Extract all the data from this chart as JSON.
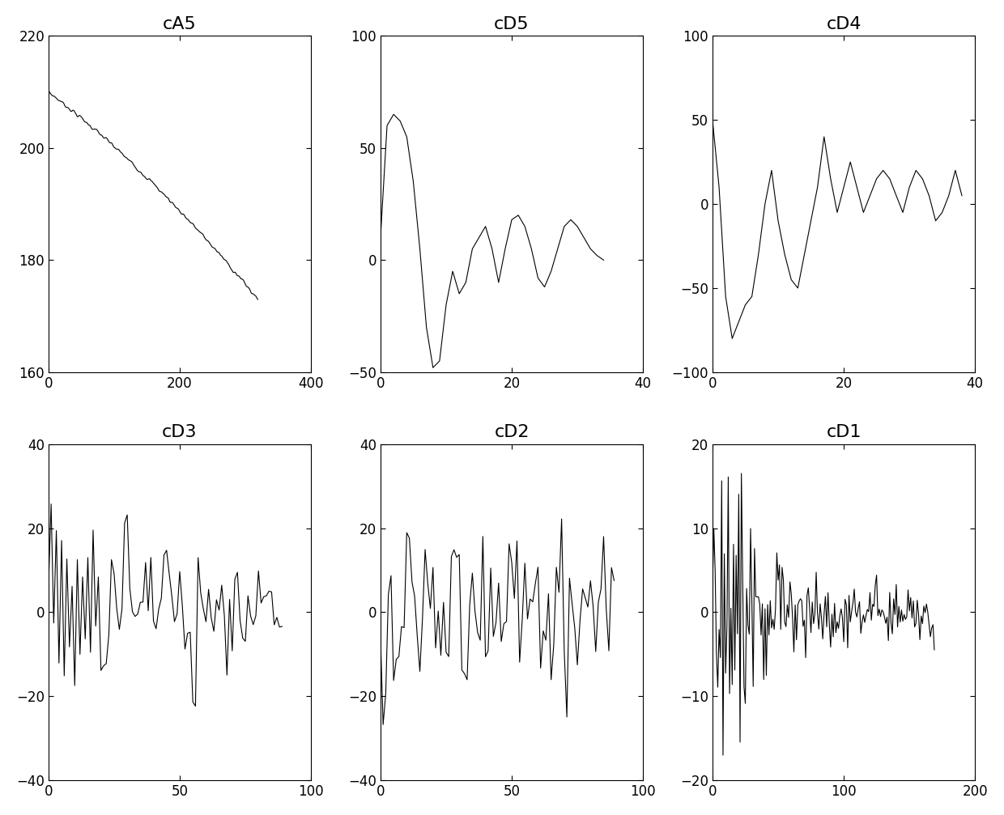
{
  "subplots": [
    {
      "title": "cA5",
      "xlim": [
        0,
        400
      ],
      "ylim": [
        160,
        220
      ],
      "yticks": [
        160,
        180,
        200,
        220
      ],
      "xticks": [
        0,
        200,
        400
      ]
    },
    {
      "title": "cD5",
      "xlim": [
        0,
        40
      ],
      "ylim": [
        -50,
        100
      ],
      "yticks": [
        -50,
        0,
        50,
        100
      ],
      "xticks": [
        0,
        20,
        40
      ]
    },
    {
      "title": "cD4",
      "xlim": [
        0,
        40
      ],
      "ylim": [
        -100,
        100
      ],
      "yticks": [
        -100,
        -50,
        0,
        50,
        100
      ],
      "xticks": [
        0,
        20,
        40
      ]
    },
    {
      "title": "cD3",
      "xlim": [
        0,
        100
      ],
      "ylim": [
        -40,
        40
      ],
      "yticks": [
        -40,
        -20,
        0,
        20,
        40
      ],
      "xticks": [
        0,
        50,
        100
      ]
    },
    {
      "title": "cD2",
      "xlim": [
        0,
        100
      ],
      "ylim": [
        -40,
        40
      ],
      "yticks": [
        -40,
        -20,
        0,
        20,
        40
      ],
      "xticks": [
        0,
        50,
        100
      ]
    },
    {
      "title": "cD1",
      "xlim": [
        0,
        200
      ],
      "ylim": [
        -20,
        20
      ],
      "yticks": [
        -20,
        -10,
        0,
        10,
        20
      ],
      "xticks": [
        0,
        100,
        200
      ]
    }
  ],
  "line_color": "#000000",
  "line_width": 0.8,
  "background_color": "#ffffff",
  "fig_width": 12.4,
  "fig_height": 10.07,
  "dpi": 100
}
